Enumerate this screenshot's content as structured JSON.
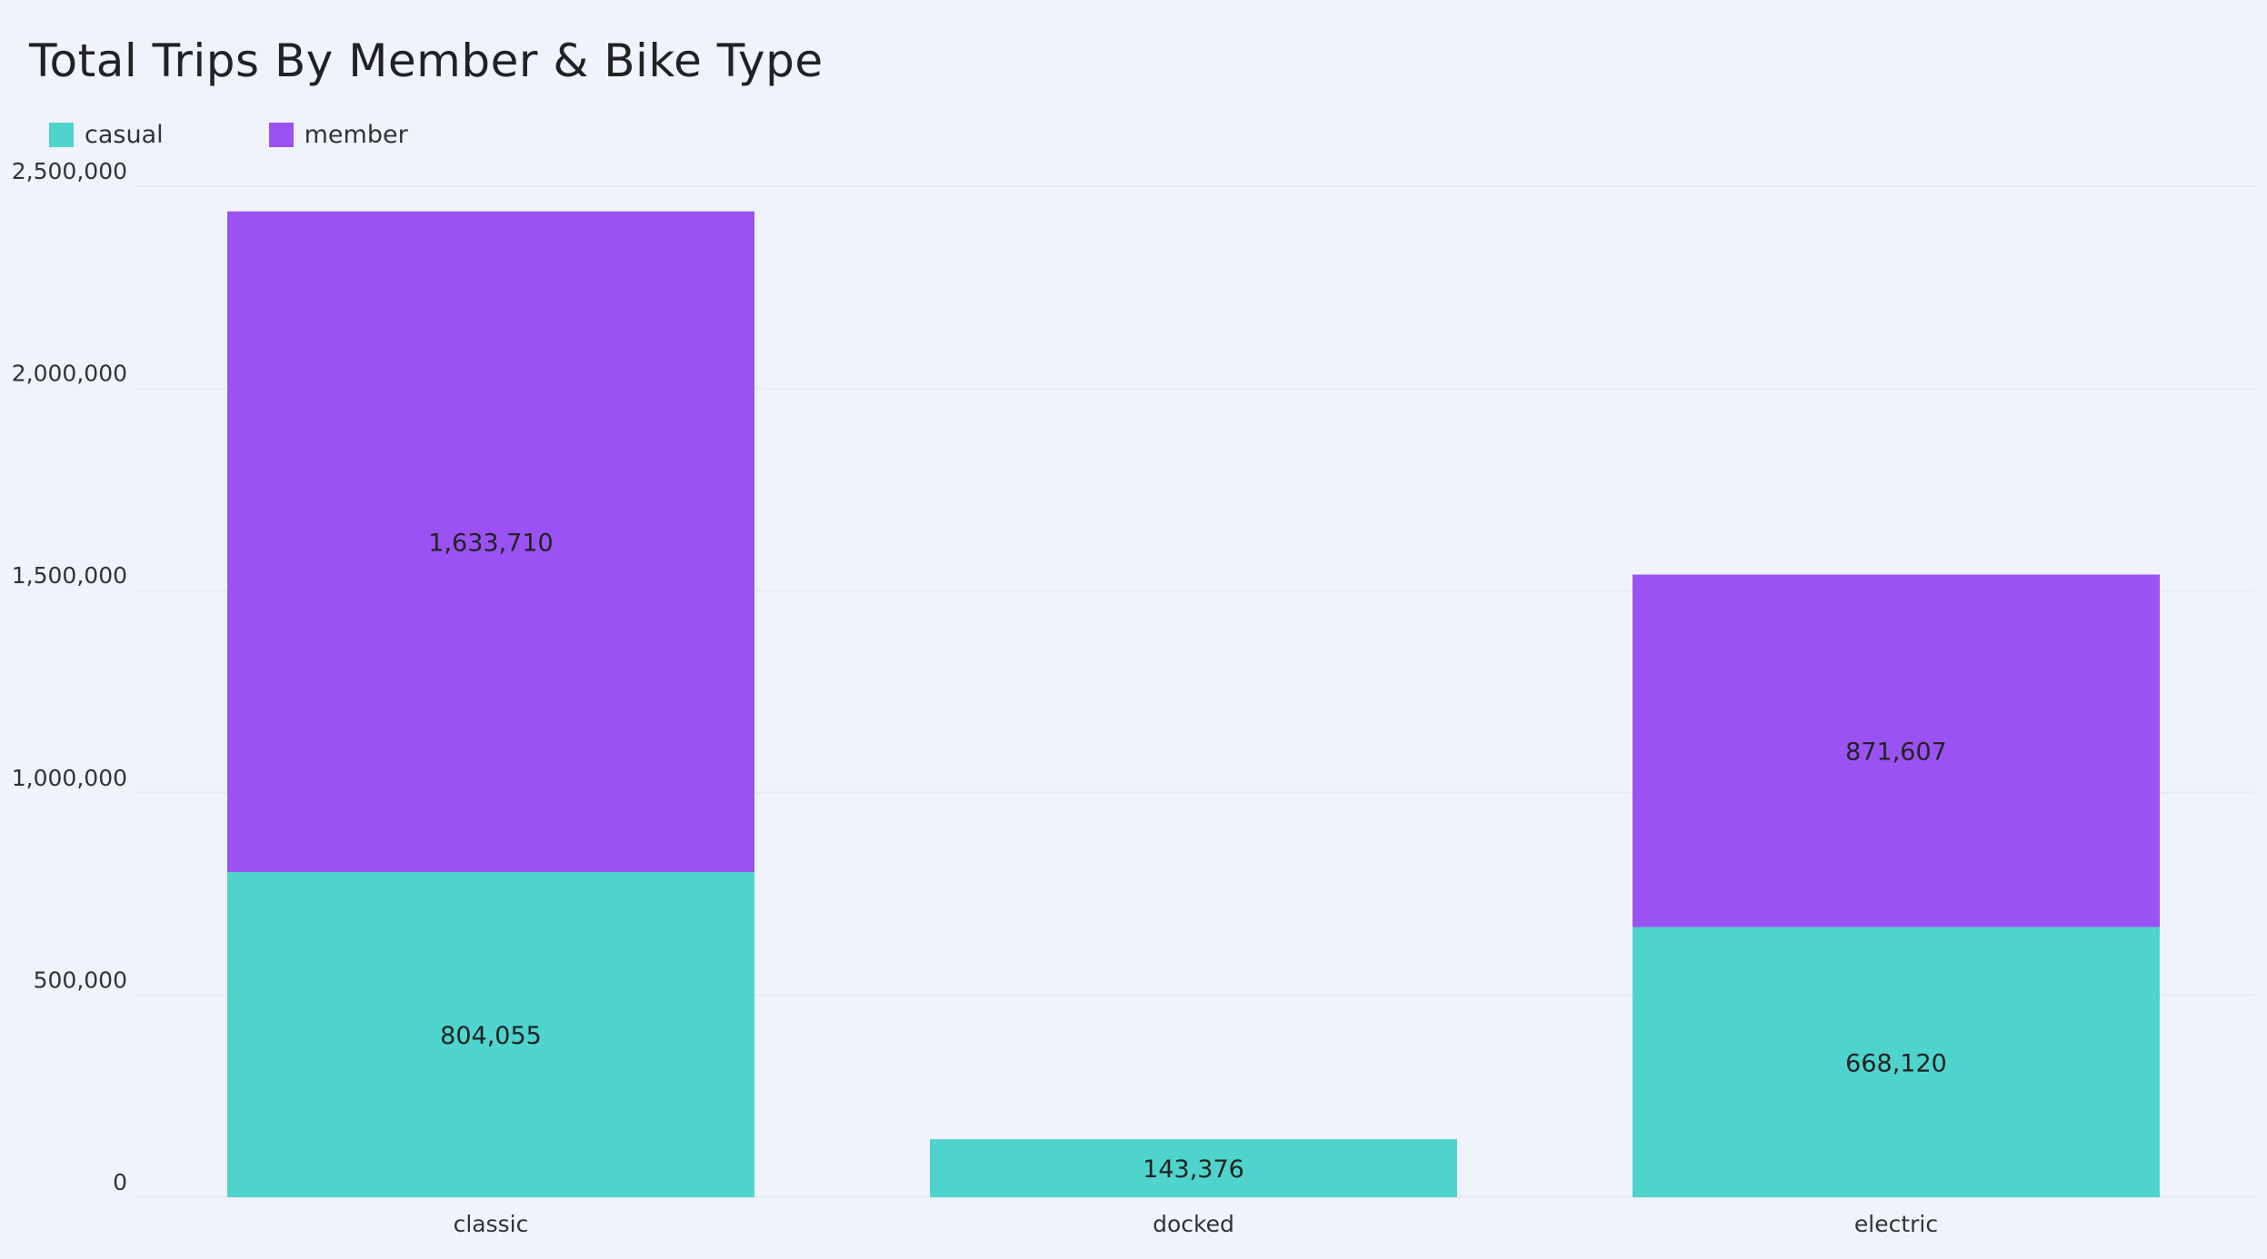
{
  "chart_data": {
    "type": "bar",
    "stacked": true,
    "title": "Total Trips By Member & Bike Type",
    "xlabel": "",
    "ylabel": "",
    "categories": [
      "classic",
      "docked",
      "electric"
    ],
    "series": [
      {
        "name": "casual",
        "color": "#4fd4cd",
        "values": [
          804055,
          143376,
          668120
        ],
        "labels": [
          "804,055",
          "143,376",
          "668,120"
        ]
      },
      {
        "name": "member",
        "color": "#9b52f2",
        "values": [
          1633710,
          0,
          871607
        ],
        "labels": [
          "1,633,710",
          "",
          "871,607"
        ]
      }
    ],
    "ylim": [
      0,
      2500000
    ],
    "yticks": [
      0,
      500000,
      1000000,
      1500000,
      2000000,
      2500000
    ],
    "ytick_labels": [
      "0",
      "500,000",
      "1,000,000",
      "1,500,000",
      "2,000,000",
      "2,500,000"
    ],
    "grid": true,
    "legend_position": "top-left"
  }
}
